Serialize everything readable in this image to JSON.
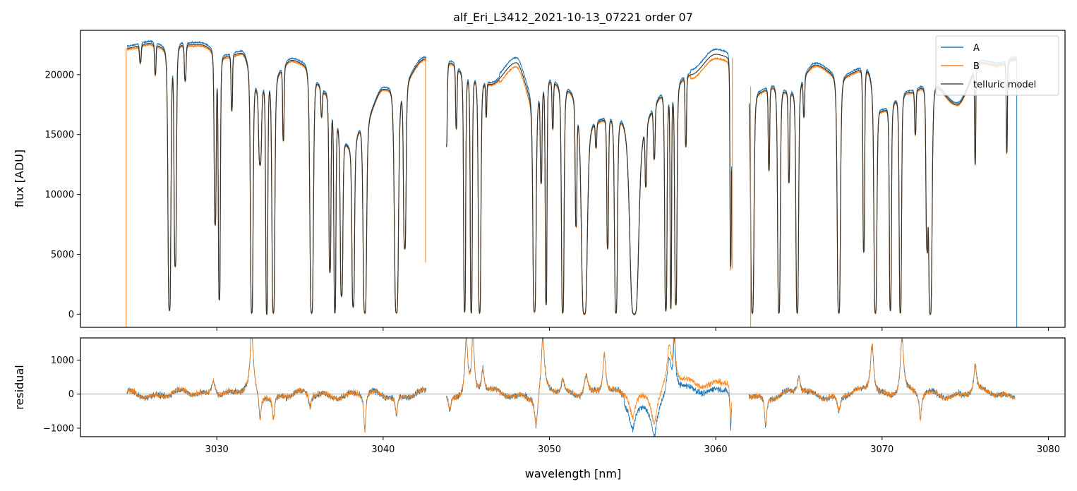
{
  "figure": {
    "title": "alf_Eri_L3412_2021-10-13_07221  order 07"
  },
  "colors": {
    "A": "#1f77b4",
    "B": "#ff7f0e",
    "telluric": "#333333",
    "zero_line": "#808080"
  },
  "chart_data": [
    {
      "type": "line",
      "panel": "top",
      "title": "alf_Eri_L3412_2021-10-13_07221  order 07",
      "xlabel": "",
      "ylabel": "flux [ADU]",
      "xlim": [
        3021.8,
        3081.0
      ],
      "ylim": [
        -1100,
        23700
      ],
      "xticks": [
        3030,
        3040,
        3050,
        3060,
        3070,
        3080
      ],
      "yticks": [
        0,
        5000,
        10000,
        15000,
        20000
      ],
      "ytick_labels": [
        "0",
        "5000",
        "10000",
        "15000",
        "20000"
      ],
      "legend": {
        "position": "top-right",
        "entries": [
          "A",
          "B",
          "telluric model"
        ]
      },
      "grid": false,
      "continuum_points": [
        [
          3024.5,
          22200
        ],
        [
          3026.0,
          22600
        ],
        [
          3027.0,
          22200
        ],
        [
          3028.0,
          22500
        ],
        [
          3029.0,
          22500
        ],
        [
          3030.5,
          21500
        ],
        [
          3031.5,
          21800
        ],
        [
          3032.5,
          19000
        ],
        [
          3033.5,
          20000
        ],
        [
          3034.5,
          21200
        ],
        [
          3035.5,
          20800
        ],
        [
          3036.5,
          18500
        ],
        [
          3038.0,
          14000
        ],
        [
          3039.0,
          16500
        ],
        [
          3040.0,
          18800
        ],
        [
          3041.0,
          19000
        ],
        [
          3042.5,
          21300
        ],
        [
          3044.0,
          21000
        ],
        [
          3045.0,
          20000
        ],
        [
          3046.5,
          19200
        ],
        [
          3048.0,
          21000
        ],
        [
          3049.0,
          18000
        ],
        [
          3050.0,
          19500
        ],
        [
          3051.0,
          18800
        ],
        [
          3052.5,
          16000
        ],
        [
          3054.0,
          16500
        ],
        [
          3055.5,
          16000
        ],
        [
          3057.0,
          18500
        ],
        [
          3058.5,
          20000
        ],
        [
          3060.0,
          21700
        ],
        [
          3061.0,
          21400
        ],
        [
          3062.5,
          18500
        ],
        [
          3063.5,
          19000
        ],
        [
          3064.5,
          18500
        ],
        [
          3066.0,
          20800
        ],
        [
          3067.5,
          19800
        ],
        [
          3069.0,
          20500
        ],
        [
          3070.0,
          17000
        ],
        [
          3071.5,
          18500
        ],
        [
          3073.0,
          19200
        ],
        [
          3074.5,
          17500
        ],
        [
          3076.0,
          21000
        ],
        [
          3077.0,
          20800
        ],
        [
          3078.0,
          21300
        ]
      ],
      "absorption_lines": [
        [
          3025.4,
          21000,
          0.06
        ],
        [
          3026.3,
          20000,
          0.05
        ],
        [
          3027.15,
          300,
          0.1
        ],
        [
          3027.5,
          4000,
          0.08
        ],
        [
          3028.1,
          19500,
          0.06
        ],
        [
          3029.9,
          7500,
          0.07
        ],
        [
          3030.15,
          1200,
          0.07
        ],
        [
          3030.9,
          17000,
          0.05
        ],
        [
          3032.1,
          100,
          0.09
        ],
        [
          3032.6,
          12500,
          0.1
        ],
        [
          3033.0,
          0,
          0.07
        ],
        [
          3033.4,
          100,
          0.1
        ],
        [
          3034.0,
          14500,
          0.05
        ],
        [
          3035.7,
          100,
          0.12
        ],
        [
          3036.3,
          16500,
          0.05
        ],
        [
          3036.8,
          3500,
          0.07
        ],
        [
          3037.1,
          100,
          0.07
        ],
        [
          3037.5,
          1500,
          0.09
        ],
        [
          3038.2,
          600,
          0.09
        ],
        [
          3038.9,
          100,
          0.12
        ],
        [
          3040.8,
          100,
          0.14
        ],
        [
          3041.3,
          5500,
          0.09
        ],
        [
          3043.8,
          14000,
          0.06
        ],
        [
          3044.4,
          15500,
          0.05
        ],
        [
          3044.9,
          200,
          0.07
        ],
        [
          3045.3,
          100,
          0.07
        ],
        [
          3045.8,
          100,
          0.09
        ],
        [
          3046.2,
          16500,
          0.04
        ],
        [
          3049.1,
          200,
          0.11
        ],
        [
          3049.5,
          11000,
          0.06
        ],
        [
          3049.8,
          800,
          0.06
        ],
        [
          3050.2,
          15500,
          0.05
        ],
        [
          3050.8,
          100,
          0.09
        ],
        [
          3051.6,
          7500,
          0.06
        ],
        [
          3052.1,
          0,
          0.2
        ],
        [
          3052.8,
          14000,
          0.05
        ],
        [
          3053.5,
          5500,
          0.06
        ],
        [
          3054.0,
          100,
          0.1
        ],
        [
          3055.1,
          0,
          0.3
        ],
        [
          3055.8,
          11000,
          0.06
        ],
        [
          3056.3,
          13000,
          0.06
        ],
        [
          3057.0,
          300,
          0.08
        ],
        [
          3057.3,
          500,
          0.05
        ],
        [
          3057.6,
          800,
          0.08
        ],
        [
          3058.2,
          14000,
          0.05
        ],
        [
          3060.9,
          4000,
          0.05
        ],
        [
          3062.2,
          100,
          0.11
        ],
        [
          3063.2,
          12000,
          0.05
        ],
        [
          3063.8,
          100,
          0.09
        ],
        [
          3064.4,
          11000,
          0.05
        ],
        [
          3064.9,
          100,
          0.09
        ],
        [
          3065.3,
          16500,
          0.05
        ],
        [
          3067.4,
          100,
          0.11
        ],
        [
          3068.9,
          5200,
          0.06
        ],
        [
          3069.6,
          100,
          0.1
        ],
        [
          3070.5,
          300,
          0.07
        ],
        [
          3071.1,
          100,
          0.08
        ],
        [
          3072.0,
          15000,
          0.05
        ],
        [
          3072.7,
          6000,
          0.07
        ],
        [
          3072.9,
          0,
          0.12
        ],
        [
          3075.6,
          12500,
          0.04
        ],
        [
          3077.5,
          13500,
          0.04
        ]
      ],
      "spikes": [
        [
          3024.55,
          -1100,
          22200
        ],
        [
          3042.55,
          4300,
          21300
        ],
        [
          3061.0,
          3800,
          21400
        ],
        [
          3062.1,
          -1100,
          19000
        ],
        [
          3078.1,
          -1100,
          21300
        ]
      ],
      "gaps": [
        [
          3042.6,
          3043.8
        ],
        [
          3060.95,
          3062.0
        ]
      ],
      "series": [
        {
          "name": "A",
          "color": "#1f77b4"
        },
        {
          "name": "B",
          "color": "#ff7f0e"
        },
        {
          "name": "telluric model",
          "color": "#333333"
        }
      ]
    },
    {
      "type": "line",
      "panel": "bottom",
      "xlabel": "wavelength [nm]",
      "ylabel": "residual",
      "xlim": [
        3021.8,
        3081.0
      ],
      "ylim": [
        -1250,
        1650
      ],
      "xticks": [
        3030,
        3040,
        3050,
        3060,
        3070,
        3080
      ],
      "xtick_labels": [
        "3030",
        "3040",
        "3050",
        "3060",
        "3070",
        "3080"
      ],
      "yticks": [
        -1000,
        0,
        1000
      ],
      "ytick_labels": [
        "−1000",
        "0",
        "1000"
      ],
      "zero_line": 0,
      "grid": false,
      "residual_features": [
        [
          3029.8,
          500,
          0.15
        ],
        [
          3032.1,
          1700,
          0.12
        ],
        [
          3032.6,
          -800,
          0.08
        ],
        [
          3033.4,
          -700,
          0.08
        ],
        [
          3035.6,
          -400,
          0.1
        ],
        [
          3038.9,
          -1100,
          0.07
        ],
        [
          3040.8,
          -600,
          0.08
        ],
        [
          3044.0,
          -500,
          0.1
        ],
        [
          3045.0,
          1700,
          0.1
        ],
        [
          3045.4,
          1800,
          0.08
        ],
        [
          3046.0,
          700,
          0.1
        ],
        [
          3049.2,
          -1000,
          0.12
        ],
        [
          3049.6,
          1600,
          0.12
        ],
        [
          3050.8,
          400,
          0.1
        ],
        [
          3052.2,
          600,
          0.15
        ],
        [
          3053.3,
          1200,
          0.1
        ],
        [
          3055.0,
          -700,
          0.2
        ],
        [
          3056.3,
          -900,
          0.2
        ],
        [
          3057.2,
          1200,
          0.15
        ],
        [
          3057.5,
          1500,
          0.08
        ],
        [
          3060.9,
          -1250,
          0.05
        ],
        [
          3063.0,
          -900,
          0.08
        ],
        [
          3065.0,
          500,
          0.1
        ],
        [
          3067.4,
          -500,
          0.12
        ],
        [
          3069.4,
          1500,
          0.12
        ],
        [
          3071.2,
          1700,
          0.12
        ],
        [
          3072.3,
          -800,
          0.08
        ],
        [
          3075.6,
          800,
          0.1
        ]
      ]
    }
  ]
}
